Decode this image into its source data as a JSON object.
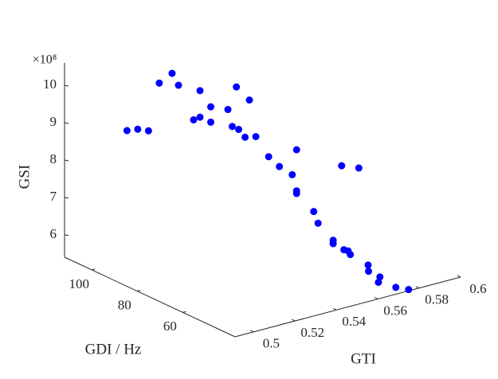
{
  "chart_data": {
    "type": "scatter3",
    "xlabel": "GTI",
    "ylabel": "GDI / Hz",
    "zlabel": "GSI",
    "z_multiplier": "×10⁸",
    "color": "#0000ff",
    "xlim": [
      0.491,
      0.6
    ],
    "ylim": [
      37,
      112
    ],
    "zlim": [
      5.4,
      10.6
    ],
    "xticks": [
      0.5,
      0.52,
      0.54,
      0.56,
      0.58,
      0.6
    ],
    "yticks": [
      60,
      80,
      100
    ],
    "zticks": [
      6,
      7,
      8,
      9,
      10
    ],
    "x": [
      0.508,
      0.511,
      0.514,
      0.517,
      0.521,
      0.523,
      0.529,
      0.527,
      0.529,
      0.532,
      0.532,
      0.537,
      0.54,
      0.543,
      0.538,
      0.54,
      0.542,
      0.545,
      0.549,
      0.552,
      0.557,
      0.556,
      0.557,
      0.557,
      0.562,
      0.563,
      0.57,
      0.575,
      0.567,
      0.567,
      0.57,
      0.572,
      0.572,
      0.574,
      0.572,
      0.572,
      0.568,
      0.572,
      0.576
    ],
    "y": [
      100,
      98,
      96,
      94,
      92,
      91,
      87,
      88,
      87,
      85,
      85,
      82,
      81,
      78,
      81,
      80,
      79,
      77,
      75,
      73,
      70,
      71,
      70,
      70,
      67,
      66,
      62,
      59,
      63,
      63,
      61,
      61,
      60,
      54,
      52,
      47,
      44,
      40,
      38
    ],
    "z": [
      8.88,
      8.93,
      8.9,
      10.19,
      10.45,
      10.13,
      10.01,
      9.23,
      9.3,
      9.18,
      9.59,
      9.53,
      10.12,
      9.81,
      9.09,
      9.01,
      8.8,
      8.83,
      8.29,
      8.04,
      8.5,
      7.82,
      7.4,
      7.33,
      6.86,
      6.56,
      8.11,
      8.06,
      6.13,
      6.04,
      5.89,
      5.83,
      5.76,
      5.62,
      5.54,
      5.53,
      5.53,
      5.45,
      5.39
    ]
  }
}
